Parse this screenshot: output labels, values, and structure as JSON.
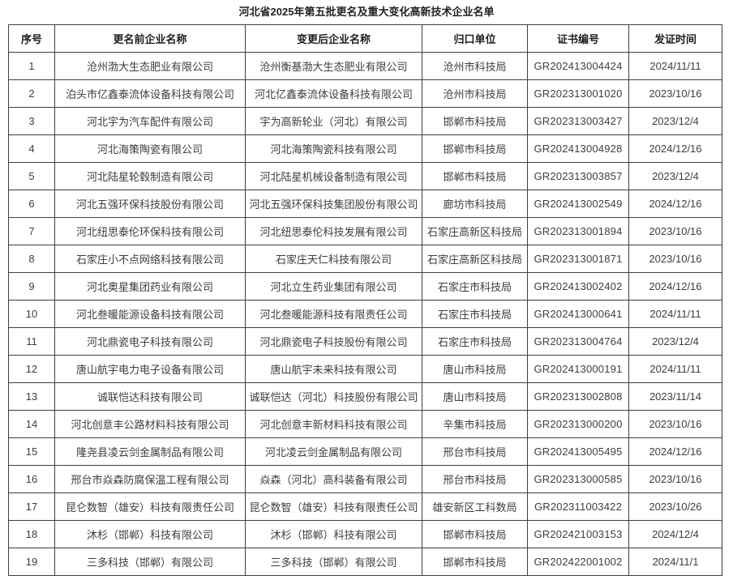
{
  "page": {
    "title": "河北省2025年第五批更名及重大变化高新技术企业名单"
  },
  "table": {
    "headers": [
      "序号",
      "更名前企业名称",
      "变更后企业名称",
      "归口单位",
      "证书编号",
      "发证时间"
    ],
    "rows": [
      [
        "1",
        "沧州渤大生态肥业有限公司",
        "沧州衡基渤大生态肥业有限公司",
        "沧州市科技局",
        "GR202413004424",
        "2024/11/11"
      ],
      [
        "2",
        "泊头市亿鑫泰流体设备科技有限公司",
        "河北亿鑫泰流体设备科技有限公司",
        "沧州市科技局",
        "GR202313001020",
        "2023/10/16"
      ],
      [
        "3",
        "河北宇为汽车配件有限公司",
        "宇为高新轮业（河北）有限公司",
        "邯郸市科技局",
        "GR202313003427",
        "2023/12/4"
      ],
      [
        "4",
        "河北海策陶瓷有限公司",
        "河北海策陶瓷科技有限公司",
        "邯郸市科技局",
        "GR202413004928",
        "2024/12/16"
      ],
      [
        "5",
        "河北陆星轮毂制造有限公司",
        "河北陆星机械设备制造有限公司",
        "邯郸市科技局",
        "GR202313003857",
        "2023/12/4"
      ],
      [
        "6",
        "河北五强环保科技股份有限公司",
        "河北五强环保科技集团股份有限公司",
        "廊坊市科技局",
        "GR202413002549",
        "2024/12/16"
      ],
      [
        "7",
        "河北纽思泰伦环保科技有限公司",
        "河北纽思泰伦科技发展有限公司",
        "石家庄高新区科技局",
        "GR202313001894",
        "2023/10/16"
      ],
      [
        "8",
        "石家庄小不点网络科技有限公司",
        "石家庄天仁科技有限公司",
        "石家庄高新区科技局",
        "GR202313001871",
        "2023/10/16"
      ],
      [
        "9",
        "河北奥星集团药业有限公司",
        "河北立生药业集团有限公司",
        "石家庄市科技局",
        "GR202413002402",
        "2024/12/16"
      ],
      [
        "10",
        "河北叁暖能源设备科技有限公司",
        "河北叁暖能源科技有限责任公司",
        "石家庄市科技局",
        "GR202413000641",
        "2024/11/11"
      ],
      [
        "11",
        "河北鼎瓷电子科技有限公司",
        "河北鼎瓷电子科技股份有限公司",
        "石家庄市科技局",
        "GR202313004764",
        "2023/12/4"
      ],
      [
        "12",
        "唐山航宇电力电子设备有限公司",
        "唐山航宇未来科技有限公司",
        "唐山市科技局",
        "GR202413000191",
        "2024/11/11"
      ],
      [
        "13",
        "诚联恺达科技有限公司",
        "诚联恺达（河北）科技股份有限公司",
        "唐山市科技局",
        "GR202313002808",
        "2023/11/14"
      ],
      [
        "14",
        "河北创意丰公路材料科技有限公司",
        "河北创意丰新材料科技有限公司",
        "辛集市科技局",
        "GR202313000200",
        "2023/10/16"
      ],
      [
        "15",
        "隆尧县凌云剑金属制品有限公司",
        "河北凌云剑金属制品有限公司",
        "邢台市科技局",
        "GR202413005495",
        "2024/12/16"
      ],
      [
        "16",
        "邢台市焱森防腐保温工程有限公司",
        "焱森（河北）高科装备有限公司",
        "邢台市科技局",
        "GR202313000585",
        "2023/10/16"
      ],
      [
        "17",
        "昆仑数智（雄安）科技有限责任公司",
        "昆仑数智（雄安）科技有限责任公司",
        "雄安新区工科数局",
        "GR202311003422",
        "2023/10/26"
      ],
      [
        "18",
        "沐杉（邯郸）科技有限公司",
        "沐杉（邯郸）科技有限公司",
        "邯郸市科技局",
        "GR202421003153",
        "2024/12/4"
      ],
      [
        "19",
        "三多科技（邯郸）有限公司",
        "三多科技（邯郸）有限公司",
        "邯郸市科技局",
        "GR202422001002",
        "2024/11/1"
      ]
    ]
  },
  "colors": {
    "border": "#3f3f3f",
    "text": "#3d3d3d",
    "header_text": "#1f1f1f",
    "numeric_accent": "#4a6d9b",
    "background": "#ffffff"
  }
}
